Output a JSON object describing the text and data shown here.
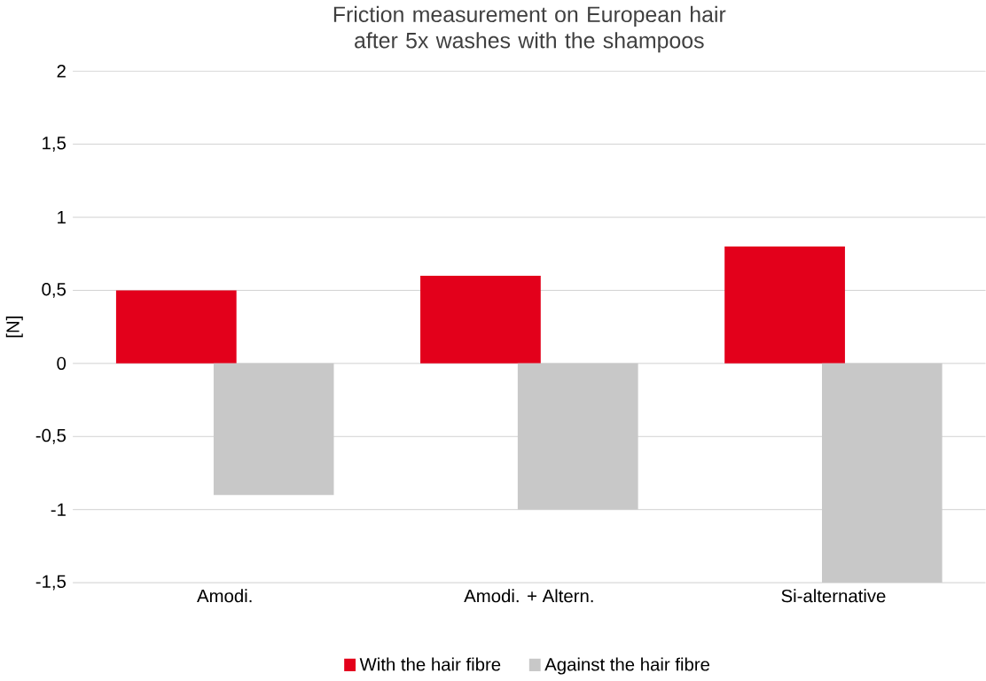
{
  "chart_data": {
    "type": "bar",
    "title": "Friction measurement on European hair after 5x washes with the shampoos",
    "ylabel": "[N]",
    "categories": [
      "Amodi.",
      "Amodi. + Altern.",
      "Si-alternative"
    ],
    "series": [
      {
        "name": "With the hair fibre",
        "color": "#e3001b",
        "values": [
          0.5,
          0.6,
          0.8
        ]
      },
      {
        "name": "Against the hair fibre",
        "color": "#c8c8c8",
        "values": [
          -0.9,
          -1.0,
          -1.5
        ]
      }
    ],
    "ylim": [
      -1.5,
      2
    ],
    "yticks": [
      {
        "value": -1.5,
        "label": "-1,5"
      },
      {
        "value": -1,
        "label": "-1"
      },
      {
        "value": -0.5,
        "label": "-0,5"
      },
      {
        "value": 0,
        "label": "0"
      },
      {
        "value": 0.5,
        "label": "0,5"
      },
      {
        "value": 1,
        "label": "1"
      },
      {
        "value": 1.5,
        "label": "1,5"
      },
      {
        "value": 2,
        "label": "2"
      }
    ],
    "grid": "y",
    "legend": "bottom"
  }
}
